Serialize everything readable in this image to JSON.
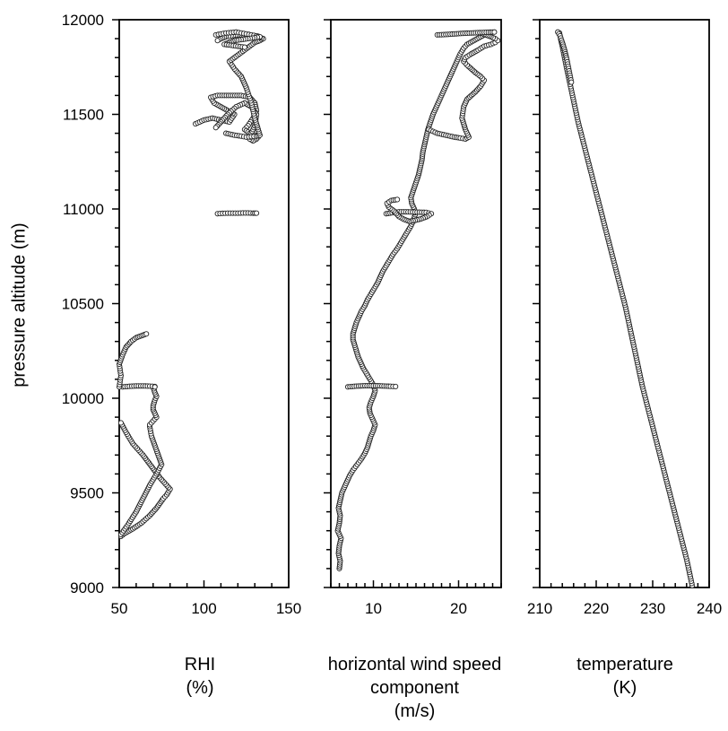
{
  "chart_data": {
    "type": "scatter",
    "y_axis": {
      "label": "pressure altitude (m)",
      "ylim": [
        9000,
        12000
      ],
      "ticks": [
        9000,
        9500,
        10000,
        10500,
        11000,
        11500,
        12000
      ]
    },
    "panels": [
      {
        "xlabel_line1": "RHI",
        "xlabel_line2": "(%)",
        "xlabel_line3": "",
        "xlim": [
          50,
          150
        ],
        "xticks": [
          50,
          100,
          150
        ],
        "series": [
          {
            "x": [
              51,
              53,
              58,
              63,
              68,
              72,
              74,
              76,
              78,
              80,
              74,
              69,
              64,
              58,
              54,
              51
            ],
            "y": [
              9270,
              9285,
              9310,
              9340,
              9380,
              9420,
              9445,
              9470,
              9490,
              9520,
              9580,
              9640,
              9700,
              9760,
              9820,
              9870
            ]
          },
          {
            "x": [
              51,
              55,
              60,
              64,
              68,
              72,
              75,
              73,
              71,
              69,
              68
            ],
            "y": [
              9280,
              9330,
              9400,
              9470,
              9540,
              9600,
              9650,
              9700,
              9750,
              9800,
              9850
            ]
          },
          {
            "x": [
              68,
              70,
              72,
              71,
              70,
              70,
              71,
              72,
              71,
              70
            ],
            "y": [
              9860,
              9880,
              9900,
              9920,
              9940,
              9960,
              9990,
              10010,
              10030,
              10060
            ]
          },
          {
            "x": [
              52,
              56,
              60,
              64,
              68,
              71,
              71
            ],
            "y": [
              10060,
              10063,
              10065,
              10065,
              10064,
              10062,
              10060
            ]
          },
          {
            "x": [
              50,
              51,
              50,
              52,
              54,
              57,
              60,
              63,
              66
            ],
            "y": [
              10060,
              10120,
              10180,
              10230,
              10270,
              10300,
              10320,
              10330,
              10340
            ]
          },
          {
            "x": [
              108,
              111,
              114,
              117,
              120,
              123,
              126,
              129,
              131
            ],
            "y": [
              10975,
              10977,
              10978,
              10978,
              10978,
              10979,
              10979,
              10978,
              10978
            ]
          },
          {
            "x": [
              95,
              100,
              105,
              110,
              115,
              118,
              114,
              110,
              106,
              104,
              108,
              112,
              117,
              122,
              127,
              130,
              131,
              129,
              126,
              124,
              127,
              130,
              132,
              131,
              129,
              127,
              128,
              130,
              131,
              128,
              124,
              119,
              114,
              110,
              107
            ],
            "y": [
              11450,
              11470,
              11480,
              11470,
              11460,
              11500,
              11520,
              11540,
              11560,
              11590,
              11600,
              11600,
              11600,
              11600,
              11590,
              11560,
              11520,
              11480,
              11440,
              11420,
              11400,
              11390,
              11380,
              11370,
              11360,
              11370,
              11400,
              11440,
              11500,
              11540,
              11560,
              11540,
              11500,
              11460,
              11430
            ]
          },
          {
            "x": [
              113,
              118,
              122,
              125,
              128,
              131,
              133,
              132,
              130,
              128,
              125,
              122,
              118,
              115,
              118,
              121,
              124,
              127,
              130,
              133,
              135,
              132,
              128,
              124,
              120,
              116,
              113,
              110,
              108
            ],
            "y": [
              11400,
              11390,
              11385,
              11380,
              11382,
              11385,
              11390,
              11420,
              11480,
              11560,
              11640,
              11700,
              11740,
              11780,
              11800,
              11820,
              11840,
              11860,
              11880,
              11890,
              11900,
              11910,
              11915,
              11920,
              11920,
              11915,
              11910,
              11900,
              11890
            ]
          },
          {
            "x": [
              107,
              110,
              113,
              116,
              119,
              122,
              125,
              128,
              131,
              133,
              130,
              126,
              122,
              118,
              115,
              112,
              116,
              120,
              124
            ],
            "y": [
              11920,
              11925,
              11930,
              11932,
              11935,
              11930,
              11925,
              11920,
              11915,
              11910,
              11905,
              11900,
              11895,
              11890,
              11880,
              11870,
              11865,
              11860,
              11855
            ]
          }
        ]
      },
      {
        "xlabel_line1": "horizontal wind speed",
        "xlabel_line2": "component",
        "xlabel_line3": "(m/s)",
        "xlim": [
          5,
          25
        ],
        "xticks": [
          10,
          20
        ],
        "series": [
          {
            "x": [
              6.0,
              6.1,
              5.9,
              6.0,
              6.2,
              5.8,
              6.0,
              6.1,
              5.9,
              6.1,
              6.3,
              6.6,
              6.9,
              7.2,
              7.6,
              8.1,
              8.6,
              9.0,
              9.3,
              9.5,
              9.7,
              10.0,
              10.2,
              9.9,
              9.6,
              9.5,
              9.7,
              10.0,
              10.2,
              10.0,
              9.6,
              9.2,
              8.8,
              8.5,
              8.2,
              8.0,
              7.8,
              7.6,
              7.6,
              7.8,
              8.0,
              8.3,
              8.6,
              9.0,
              9.3,
              9.7,
              10.1,
              10.5,
              10.8,
              11.1,
              11.5,
              11.9,
              12.3,
              12.8,
              13.2,
              13.6,
              14.0,
              14.4,
              14.7,
              14.9,
              14.8,
              14.5,
              14.4,
              14.7,
              15.0,
              15.3,
              15.5,
              15.7,
              15.8,
              16.0,
              16.2,
              16.4,
              16.7,
              17.0,
              17.4,
              17.8,
              18.2,
              18.6,
              19.0,
              19.4,
              19.8,
              20.2,
              20.6,
              21.0,
              21.4,
              21.8,
              22.2,
              22.6,
              23.0,
              23.3
            ],
            "y": [
              9100,
              9140,
              9180,
              9220,
              9260,
              9300,
              9340,
              9380,
              9420,
              9460,
              9500,
              9530,
              9560,
              9590,
              9620,
              9650,
              9680,
              9710,
              9740,
              9770,
              9800,
              9830,
              9860,
              9890,
              9920,
              9950,
              9980,
              10010,
              10040,
              10070,
              10100,
              10130,
              10160,
              10190,
              10220,
              10250,
              10280,
              10310,
              10340,
              10370,
              10400,
              10430,
              10460,
              10490,
              10520,
              10550,
              10580,
              10610,
              10640,
              10670,
              10700,
              10730,
              10760,
              10790,
              10820,
              10850,
              10880,
              10910,
              10940,
              10970,
              11000,
              11030,
              11060,
              11100,
              11140,
              11180,
              11220,
              11260,
              11300,
              11340,
              11380,
              11420,
              11460,
              11500,
              11540,
              11580,
              11620,
              11660,
              11700,
              11740,
              11780,
              11820,
              11850,
              11870,
              11880,
              11890,
              11900,
              11910,
              11920,
              11930
            ]
          },
          {
            "x": [
              7.0,
              7.5,
              8.0,
              8.5,
              9.0,
              9.5,
              10.0,
              10.5,
              11.0,
              11.5,
              12.0,
              12.6
            ],
            "y": [
              10060,
              10062,
              10064,
              10065,
              10066,
              10066,
              10066,
              10066,
              10065,
              10064,
              10063,
              10062
            ]
          },
          {
            "x": [
              11.5,
              12.2,
              13.0,
              13.8,
              14.6,
              15.4,
              16.2,
              16.8,
              16.3,
              15.6,
              14.9,
              14.2,
              13.6,
              13.0,
              12.4,
              11.8,
              11.6,
              12.1,
              12.8
            ],
            "y": [
              10975,
              10980,
              10985,
              10985,
              10984,
              10983,
              10982,
              10975,
              10960,
              10948,
              10940,
              10935,
              10945,
              10960,
              10990,
              11010,
              11030,
              11045,
              11050
            ]
          },
          {
            "x": [
              16.5,
              17.5,
              18.5,
              19.5,
              20.2,
              20.8,
              21.2,
              20.8,
              20.4,
              20.6,
              21.0,
              21.5,
              22.0,
              22.6,
              23.0,
              22.6,
              22.0,
              21.5,
              21.0,
              20.6,
              20.8,
              21.5,
              22.3,
              23.0,
              23.8,
              24.3,
              24.6,
              24.3,
              23.8,
              23.2,
              22.6
            ],
            "y": [
              11420,
              11400,
              11390,
              11380,
              11375,
              11370,
              11380,
              11420,
              11480,
              11540,
              11580,
              11600,
              11620,
              11650,
              11680,
              11700,
              11720,
              11740,
              11760,
              11780,
              11800,
              11820,
              11840,
              11860,
              11870,
              11880,
              11890,
              11900,
              11910,
              11920,
              11930
            ]
          },
          {
            "x": [
              17.5,
              18.5,
              19.5,
              20.5,
              21.5,
              22.5,
              23.5,
              24.2
            ],
            "y": [
              11920,
              11922,
              11925,
              11928,
              11930,
              11932,
              11934,
              11935
            ]
          }
        ]
      },
      {
        "xlabel_line1": "temperature",
        "xlabel_line2": "(K)",
        "xlabel_line3": "",
        "xlim": [
          210,
          240
        ],
        "xticks": [
          210,
          220,
          230,
          240
        ],
        "series": [
          {
            "x": [
              237.0,
              236.5,
              236.0,
              235.4,
              234.8,
              234.2,
              233.6,
              233.0,
              232.4,
              231.8,
              231.2,
              230.6,
              230.0,
              229.4,
              228.8,
              228.2,
              227.7,
              227.2,
              226.7,
              226.2,
              225.7,
              225.2,
              224.6,
              224.0,
              223.4,
              222.8,
              222.2,
              221.6,
              221.0,
              220.4,
              219.8,
              219.2,
              218.6,
              218.0,
              217.4,
              216.8,
              216.3,
              215.8,
              215.3,
              214.8,
              214.4,
              214.0,
              213.7,
              213.5
            ],
            "y": [
              9010,
              9080,
              9150,
              9220,
              9290,
              9360,
              9430,
              9500,
              9570,
              9640,
              9710,
              9780,
              9850,
              9920,
              9990,
              10060,
              10130,
              10200,
              10270,
              10340,
              10410,
              10480,
              10550,
              10620,
              10690,
              10760,
              10830,
              10900,
              10970,
              11040,
              11110,
              11180,
              11250,
              11320,
              11390,
              11460,
              11530,
              11600,
              11670,
              11740,
              11800,
              11860,
              11900,
              11930
            ]
          },
          {
            "x": [
              213.2,
              213.6,
              214.0,
              214.4,
              214.8,
              215.2,
              215.6
            ],
            "y": [
              11935,
              11915,
              11880,
              11840,
              11790,
              11730,
              11670
            ]
          }
        ]
      }
    ]
  }
}
